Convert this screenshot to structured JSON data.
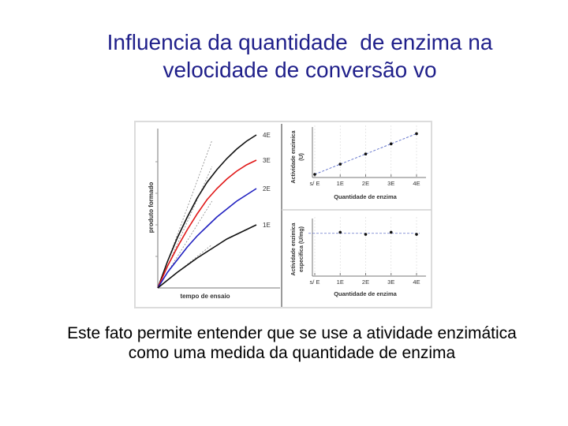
{
  "title_lines": [
    "Influencia da quantidade  de enzima na",
    "velocidade de conversão vo"
  ],
  "caption_lines": [
    "Este fato permite entender que se use a atividade enzimática",
    "como uma medida da quantidade de enzima"
  ],
  "colors": {
    "title": "#1f1f8a",
    "red_curve": "#e01818",
    "blue_curve": "#2020c0",
    "black_curve": "#111111",
    "line_blue": "#6677cc"
  },
  "chart_data": [
    {
      "type": "line",
      "xlabel": "tempo de ensaio",
      "ylabel": "produto formado",
      "series": [
        {
          "name": "4E",
          "color": "#111111",
          "x": [
            0,
            0.1,
            0.2,
            0.3,
            0.4,
            0.5,
            0.6,
            0.7,
            0.8,
            0.9,
            1.0
          ],
          "values": [
            0,
            0.17,
            0.32,
            0.45,
            0.57,
            0.67,
            0.75,
            0.82,
            0.88,
            0.93,
            0.97
          ]
        },
        {
          "name": "3E",
          "color": "#e01818",
          "x": [
            0,
            0.1,
            0.2,
            0.3,
            0.4,
            0.5,
            0.6,
            0.7,
            0.8,
            0.9,
            1.0
          ],
          "values": [
            0,
            0.14,
            0.26,
            0.37,
            0.47,
            0.56,
            0.63,
            0.69,
            0.74,
            0.78,
            0.81
          ]
        },
        {
          "name": "2E",
          "color": "#2020c0",
          "x": [
            0,
            0.1,
            0.2,
            0.3,
            0.4,
            0.5,
            0.6,
            0.7,
            0.8,
            0.9,
            1.0
          ],
          "values": [
            0,
            0.1,
            0.18,
            0.26,
            0.33,
            0.39,
            0.45,
            0.5,
            0.55,
            0.59,
            0.63
          ]
        },
        {
          "name": "1E",
          "color": "#111111",
          "x": [
            0,
            0.1,
            0.2,
            0.3,
            0.4,
            0.5,
            0.6,
            0.7,
            0.8,
            0.9,
            1.0
          ],
          "values": [
            0,
            0.05,
            0.1,
            0.145,
            0.19,
            0.23,
            0.27,
            0.31,
            0.34,
            0.37,
            0.4
          ]
        }
      ]
    },
    {
      "type": "line",
      "xlabel": "Quantidade de enzima",
      "ylabel_lines": [
        "Actividade enzimica",
        "(U)"
      ],
      "categories": [
        "s/ E",
        "1E",
        "2E",
        "3E",
        "4E"
      ],
      "values": [
        0,
        1,
        2,
        3,
        4
      ],
      "ylim": [
        0,
        4.5
      ]
    },
    {
      "type": "line",
      "xlabel": "Quantidade de enzima",
      "ylabel_lines": [
        "Actividade enzimica",
        "especifica (U/mg)"
      ],
      "categories": [
        "s/ E",
        "1E",
        "2E",
        "3E",
        "4E"
      ],
      "values": [
        null,
        1.0,
        0.95,
        1.0,
        0.95
      ],
      "ylim": [
        0,
        1.3
      ]
    }
  ]
}
